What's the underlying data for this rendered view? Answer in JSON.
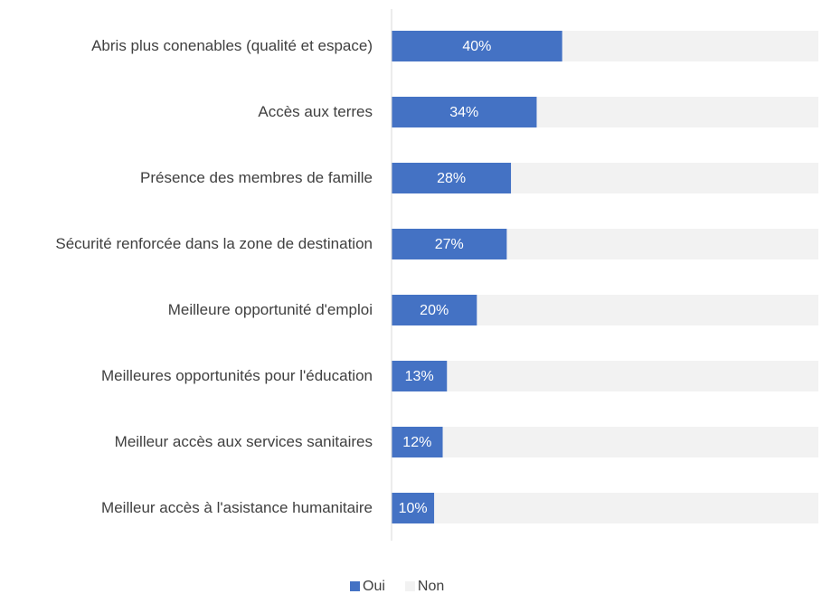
{
  "chart_data": {
    "type": "stacked_barh",
    "categories": [
      "Abris plus conenables (qualité et espace)",
      "Accès aux terres",
      "Présence des membres de famille",
      "Sécurité renforcée dans la zone de destination",
      "Meilleure opportunité d'emploi",
      "Meilleures opportunités pour l'éducation",
      "Meilleur accès aux services sanitaires",
      "Meilleur accès à l'asistance humanitaire"
    ],
    "series": [
      {
        "name": "Oui",
        "color": "#4472c4",
        "values": [
          40,
          34,
          28,
          27,
          20,
          13,
          12,
          10
        ],
        "value_labels": [
          "40%",
          "34%",
          "28%",
          "27%",
          "20%",
          "13%",
          "12%",
          "10%"
        ]
      },
      {
        "name": "Non",
        "color": "#f2f2f2",
        "values": [
          60,
          66,
          72,
          73,
          80,
          87,
          88,
          90
        ]
      }
    ],
    "xlim": [
      0,
      100
    ],
    "legend": "bottom"
  }
}
